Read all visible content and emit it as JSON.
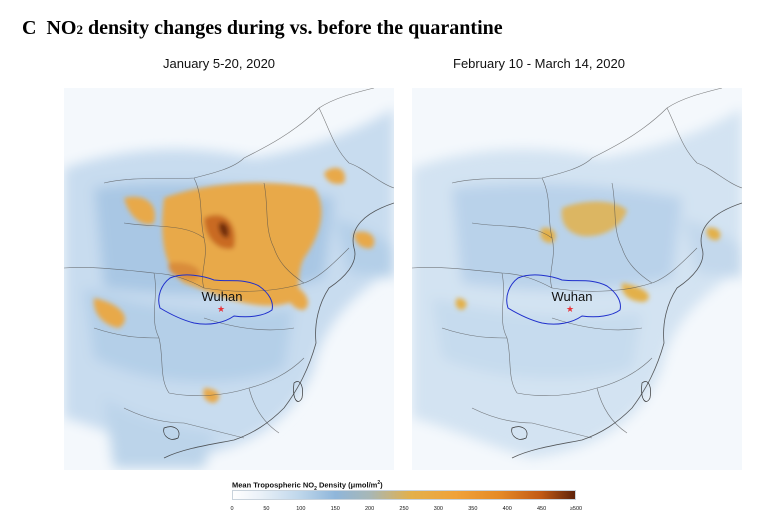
{
  "figure": {
    "panel_letter": "C",
    "title_pre": "NO",
    "title_sub": "2",
    "title_post": " density changes during vs. before the quarantine"
  },
  "maps": [
    {
      "period": "January 5-20, 2020",
      "city_label": "Wuhan"
    },
    {
      "period": "February 10 - March 14, 2020",
      "city_label": "Wuhan"
    }
  ],
  "legend": {
    "title_pre": "Mean Tropospheric NO",
    "title_sub": "2",
    "title_mid": " Density (μmol/m",
    "title_sup": "2",
    "title_post": ")",
    "ticks": [
      "0",
      "50",
      "100",
      "150",
      "200",
      "250",
      "300",
      "350",
      "400",
      "450",
      "≥500"
    ],
    "colors": {
      "low": "#ffffff",
      "mid_low": "#8fb6da",
      "mid": "#e3b04a",
      "high": "#c25a16",
      "max": "#5e220a",
      "province_outline": "#1f2fcc",
      "city_marker": "#e8333a"
    }
  }
}
